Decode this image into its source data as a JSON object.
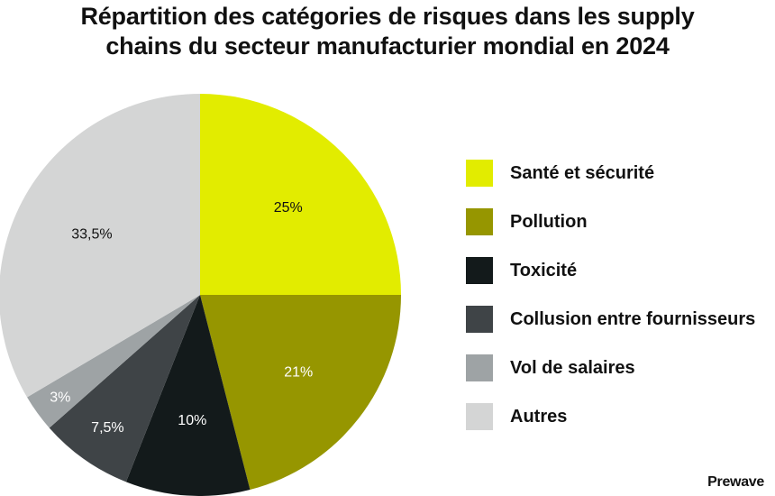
{
  "chart_data": {
    "type": "pie",
    "title": "Répartition des catégories de risques dans les supply chains du secteur manufacturier mondial en 2024",
    "title_lines": [
      "Répartition des catégories de risques dans les supply",
      "chains du secteur manufacturier mondial en 2024"
    ],
    "slices": [
      {
        "label": "Santé et sécurité",
        "value": 25,
        "display": "25%",
        "color": "#e2ec00",
        "text_color": "#111111"
      },
      {
        "label": "Pollution",
        "value": 21,
        "display": "21%",
        "color": "#969600",
        "text_color": "#ffffff"
      },
      {
        "label": "Toxicité",
        "value": 10,
        "display": "10%",
        "color": "#131a1b",
        "text_color": "#ffffff"
      },
      {
        "label": "Collusion entre fournisseurs",
        "value": 7.5,
        "display": "7,5%",
        "color": "#3f4447",
        "text_color": "#ffffff"
      },
      {
        "label": "Vol de salaires",
        "value": 3,
        "display": "3%",
        "color": "#9ea3a5",
        "text_color": "#ffffff"
      },
      {
        "label": "Autres",
        "value": 33.5,
        "display": "33,5%",
        "color": "#d4d5d5",
        "text_color": "#111111"
      }
    ],
    "start": "12 o'clock",
    "direction": "clockwise",
    "legend_position": "right"
  },
  "brand": "Prewave"
}
